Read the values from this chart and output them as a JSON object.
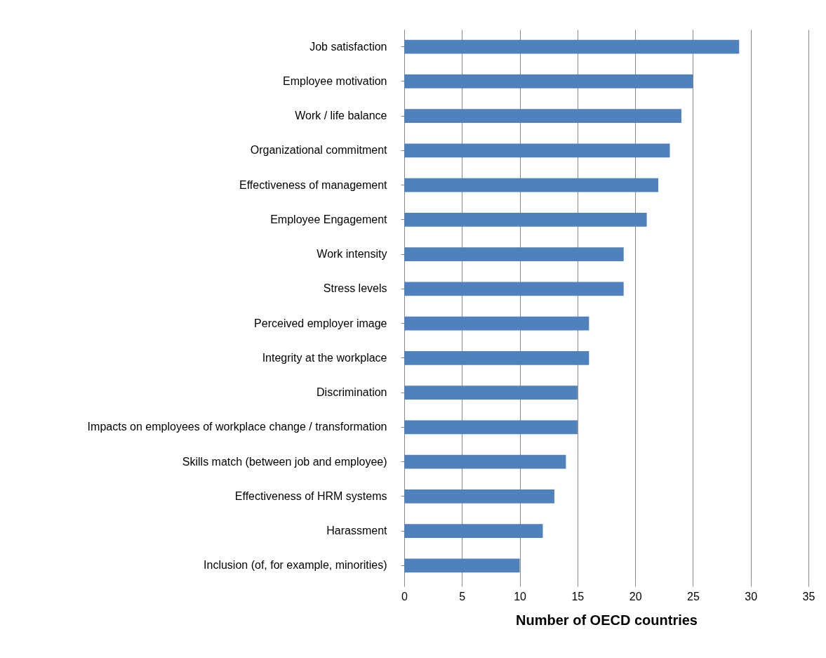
{
  "chart_data": {
    "type": "bar",
    "orientation": "horizontal",
    "xlabel": "Number of OECD countries",
    "categories": [
      "Job satisfaction",
      "Employee motivation",
      "Work / life balance",
      "Organizational commitment",
      "Effectiveness of management",
      "Employee Engagement",
      "Work intensity",
      "Stress levels",
      "Perceived employer image",
      "Integrity at the workplace",
      "Discrimination",
      "Impacts on employees of workplace change / transformation",
      "Skills match (between job and employee)",
      "Effectiveness of HRM systems",
      "Harassment",
      "Inclusion (of, for example, minorities)"
    ],
    "values": [
      29,
      25,
      24,
      23,
      22,
      21,
      19,
      19,
      16,
      16,
      15,
      15,
      14,
      13,
      12,
      10
    ],
    "color": "#4f81bd",
    "xlim": [
      0,
      35
    ],
    "xticks": [
      0,
      5,
      10,
      15,
      20,
      25,
      30,
      35
    ],
    "grid": "x"
  }
}
